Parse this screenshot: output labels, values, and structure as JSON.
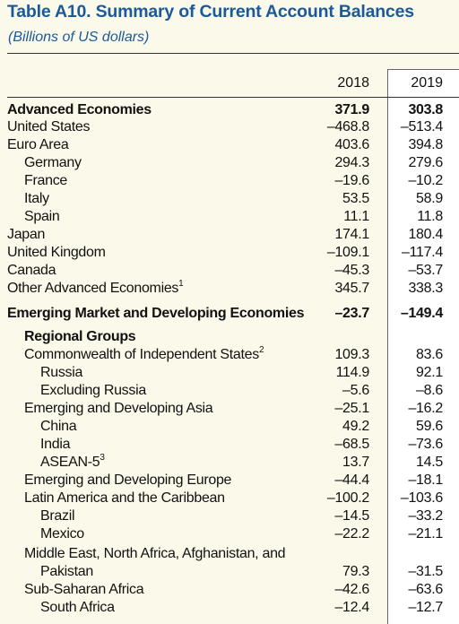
{
  "title": "Table A10. Summary of Current Account Balances",
  "subtitle": "(Billions of US dollars)",
  "columns": [
    "2018",
    "2019"
  ],
  "rows": [
    {
      "label": "Advanced Economies",
      "v2018": "371.9",
      "v2019": "303.8",
      "bold": true,
      "indent": 0
    },
    {
      "label": "United States",
      "v2018": "–468.8",
      "v2019": "–513.4",
      "indent": 0
    },
    {
      "label": "Euro Area",
      "v2018": "403.6",
      "v2019": "394.8",
      "indent": 0
    },
    {
      "label": "Germany",
      "v2018": "294.3",
      "v2019": "279.6",
      "indent": 1
    },
    {
      "label": "France",
      "v2018": "–19.6",
      "v2019": "–10.2",
      "indent": 1
    },
    {
      "label": "Italy",
      "v2018": "53.5",
      "v2019": "58.9",
      "indent": 1
    },
    {
      "label": "Spain",
      "v2018": "11.1",
      "v2019": "11.8",
      "indent": 1
    },
    {
      "label": "Japan",
      "v2018": "174.1",
      "v2019": "180.4",
      "indent": 0
    },
    {
      "label": "United Kingdom",
      "v2018": "–109.1",
      "v2019": "–117.4",
      "indent": 0
    },
    {
      "label": "Canada",
      "v2018": "–45.3",
      "v2019": "–53.7",
      "indent": 0
    },
    {
      "label": "Other Advanced Economies",
      "sup": "1",
      "v2018": "345.7",
      "v2019": "338.3",
      "indent": 0
    },
    {
      "label": "Emerging Market and Developing Economies",
      "v2018": "–23.7",
      "v2019": "–149.4",
      "bold": true,
      "indent": 0
    },
    {
      "label": "Regional Groups",
      "bold": true,
      "indent": 1
    },
    {
      "label": "Commonwealth of Independent States",
      "sup": "2",
      "v2018": "109.3",
      "v2019": "83.6",
      "indent": 1
    },
    {
      "label": "Russia",
      "v2018": "114.9",
      "v2019": "92.1",
      "indent": 2
    },
    {
      "label": "Excluding Russia",
      "v2018": "–5.6",
      "v2019": "–8.6",
      "indent": 2
    },
    {
      "label": "Emerging and Developing Asia",
      "v2018": "–25.1",
      "v2019": "–16.2",
      "indent": 1
    },
    {
      "label": "China",
      "v2018": "49.2",
      "v2019": "59.6",
      "indent": 2
    },
    {
      "label": "India",
      "v2018": "–68.5",
      "v2019": "–73.6",
      "indent": 2
    },
    {
      "label": "ASEAN-5",
      "sup": "3",
      "v2018": "13.7",
      "v2019": "14.5",
      "indent": 2
    },
    {
      "label": "Emerging and Developing Europe",
      "v2018": "–44.4",
      "v2019": "–18.1",
      "indent": 1
    },
    {
      "label": "Latin America and the Caribbean",
      "v2018": "–100.2",
      "v2019": "–103.6",
      "indent": 1
    },
    {
      "label": "Brazil",
      "v2018": "–14.5",
      "v2019": "–33.2",
      "indent": 2
    },
    {
      "label": "Mexico",
      "v2018": "–22.2",
      "v2019": "–21.1",
      "indent": 2
    },
    {
      "label": "Middle East, North Africa, Afghanistan, and",
      "indent": 1
    },
    {
      "label": "Pakistan",
      "v2018": "79.3",
      "v2019": "–31.5",
      "indent": 2
    },
    {
      "label": "Sub-Saharan Africa",
      "v2018": "–42.6",
      "v2019": "–63.6",
      "indent": 1
    },
    {
      "label": "South Africa",
      "v2018": "–12.4",
      "v2019": "–12.7",
      "indent": 2
    }
  ]
}
